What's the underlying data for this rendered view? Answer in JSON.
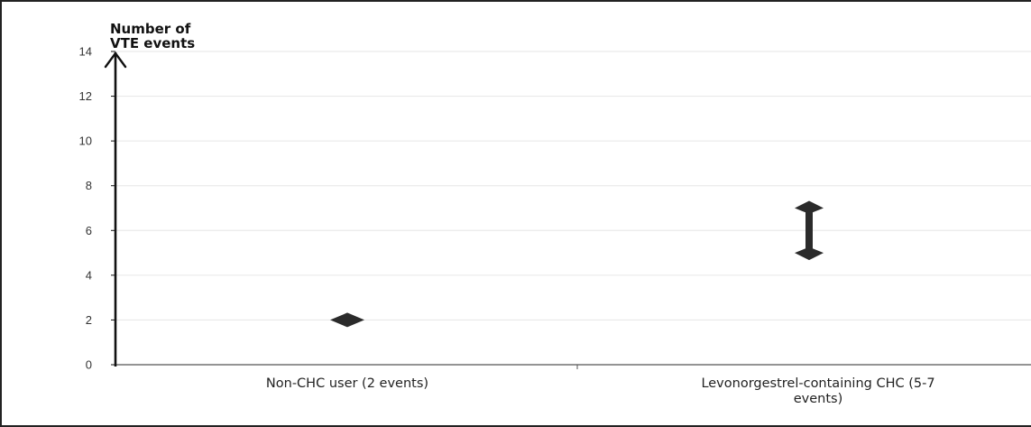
{
  "chart_data": {
    "type": "scatter",
    "title": "",
    "ylabel_lines": [
      "Number of",
      "VTE events"
    ],
    "ylim": [
      0,
      14
    ],
    "y_ticks": [
      0,
      2,
      4,
      6,
      8,
      10,
      12,
      14
    ],
    "grid": true,
    "legend": "none",
    "categories": [
      {
        "label_lines": [
          "Non-CHC user (2 events)"
        ]
      },
      {
        "label_lines": [
          "Levonorgestrel-containing CHC (5-7",
          "events)"
        ]
      }
    ],
    "points": [
      {
        "category": 0,
        "value": 2,
        "marker": "diamond"
      }
    ],
    "ranges": [
      {
        "category": 1,
        "low": 5,
        "high": 7,
        "marker": "double-arrow"
      }
    ],
    "colors": {
      "marker": "#2b2b2b",
      "axis": "#111111",
      "grid": "#e6e6e6"
    }
  }
}
